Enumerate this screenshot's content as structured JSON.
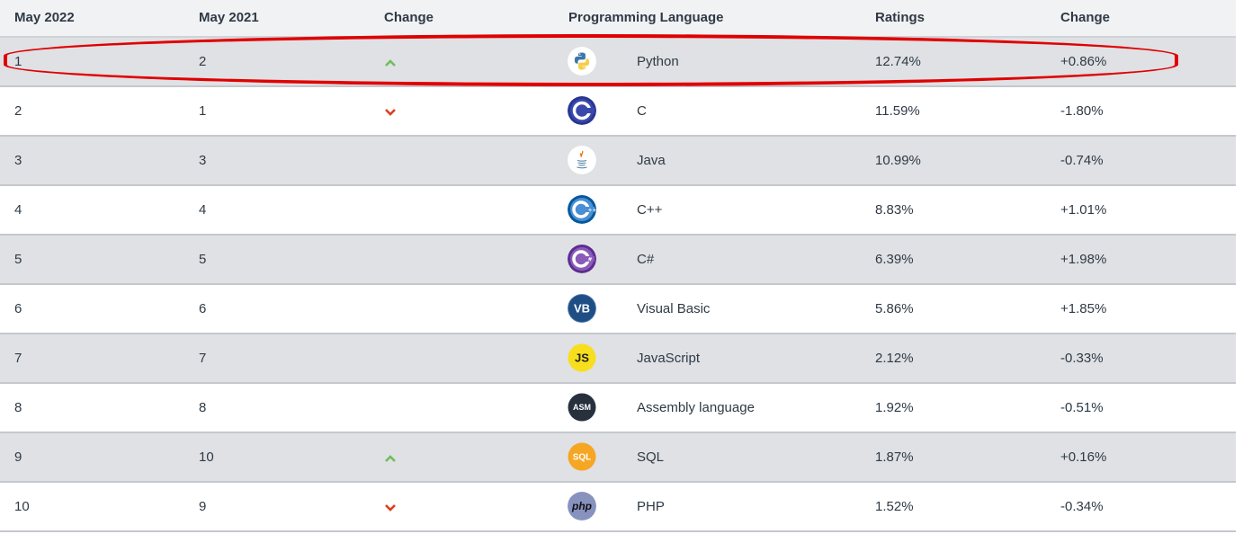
{
  "headers": {
    "may_2022": "May 2022",
    "may_2021": "May 2021",
    "change": "Change",
    "language": "Programming Language",
    "ratings": "Ratings",
    "change2": "Change"
  },
  "rows": [
    {
      "may2022": "1",
      "may2021": "2",
      "trend": "up",
      "language": "Python",
      "rating": "12.74%",
      "change": "+0.86%",
      "icon": "python-logo-icon"
    },
    {
      "may2022": "2",
      "may2021": "1",
      "trend": "down",
      "language": "C",
      "rating": "11.59%",
      "change": "-1.80%",
      "icon": "c-logo-icon"
    },
    {
      "may2022": "3",
      "may2021": "3",
      "trend": "none",
      "language": "Java",
      "rating": "10.99%",
      "change": "-0.74%",
      "icon": "java-logo-icon"
    },
    {
      "may2022": "4",
      "may2021": "4",
      "trend": "none",
      "language": "C++",
      "rating": "8.83%",
      "change": "+1.01%",
      "icon": "cpp-logo-icon"
    },
    {
      "may2022": "5",
      "may2021": "5",
      "trend": "none",
      "language": "C#",
      "rating": "6.39%",
      "change": "+1.98%",
      "icon": "csharp-logo-icon"
    },
    {
      "may2022": "6",
      "may2021": "6",
      "trend": "none",
      "language": "Visual Basic",
      "rating": "5.86%",
      "change": "+1.85%",
      "icon": "vb-logo-icon"
    },
    {
      "may2022": "7",
      "may2021": "7",
      "trend": "none",
      "language": "JavaScript",
      "rating": "2.12%",
      "change": "-0.33%",
      "icon": "js-logo-icon"
    },
    {
      "may2022": "8",
      "may2021": "8",
      "trend": "none",
      "language": "Assembly language",
      "rating": "1.92%",
      "change": "-0.51%",
      "icon": "asm-logo-icon"
    },
    {
      "may2022": "9",
      "may2021": "10",
      "trend": "up",
      "language": "SQL",
      "rating": "1.87%",
      "change": "+0.16%",
      "icon": "sql-logo-icon"
    },
    {
      "may2022": "10",
      "may2021": "9",
      "trend": "down",
      "language": "PHP",
      "rating": "1.52%",
      "change": "-0.34%",
      "icon": "php-logo-icon"
    }
  ],
  "logo_text": {
    "vb": "VB",
    "js": "JS",
    "asm": "ASM",
    "sql": "SQL",
    "php": "php"
  },
  "colors": {
    "up_arrow": "#6fbf5a",
    "down_arrow": "#d9401b",
    "highlight": "#e00000",
    "shaded_row": "#dfe1e4"
  }
}
